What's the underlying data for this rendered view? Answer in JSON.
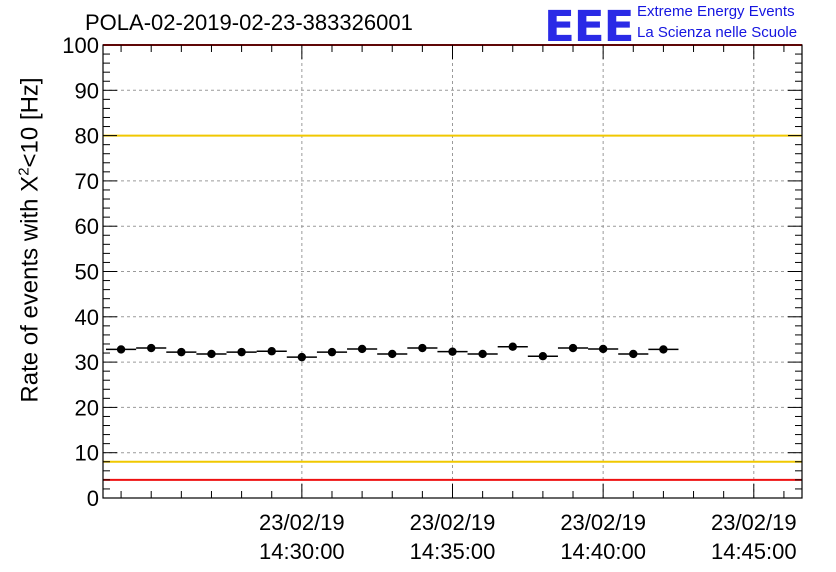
{
  "header": {
    "title": "POLA-02-2019-02-23-383326001"
  },
  "logo": {
    "mark": "EEE",
    "line1": "Extreme Energy Events",
    "line2": "La Scienza nelle Scuole",
    "color": "#1515e0"
  },
  "chart_data": {
    "type": "scatter",
    "title": "POLA-02-2019-02-23-383326001",
    "ylabel_main": "Rate of events with X",
    "ylabel_sup": "2",
    "ylabel_tail": "<10 [Hz]",
    "xlabel": "",
    "ylim": [
      0,
      100
    ],
    "yticks": [
      0,
      10,
      20,
      30,
      40,
      50,
      60,
      70,
      80,
      90,
      100
    ],
    "xlim_minutes": [
      23.4,
      46.6
    ],
    "xticks": [
      {
        "minute": 30,
        "date": "23/02/19",
        "time": "14:30:00"
      },
      {
        "minute": 35,
        "date": "23/02/19",
        "time": "14:35:00"
      },
      {
        "minute": 40,
        "date": "23/02/19",
        "time": "14:40:00"
      },
      {
        "minute": 45,
        "date": "23/02/19",
        "time": "14:45:00"
      }
    ],
    "grid": true,
    "bin_width_minutes": 1,
    "points": [
      {
        "minute": 24.0,
        "y": 32.8
      },
      {
        "minute": 25.0,
        "y": 33.1
      },
      {
        "minute": 26.0,
        "y": 32.2
      },
      {
        "minute": 27.0,
        "y": 31.8
      },
      {
        "minute": 28.0,
        "y": 32.2
      },
      {
        "minute": 29.0,
        "y": 32.4
      },
      {
        "minute": 30.0,
        "y": 31.1
      },
      {
        "minute": 31.0,
        "y": 32.2
      },
      {
        "minute": 32.0,
        "y": 32.9
      },
      {
        "minute": 33.0,
        "y": 31.8
      },
      {
        "minute": 34.0,
        "y": 33.1
      },
      {
        "minute": 35.0,
        "y": 32.3
      },
      {
        "minute": 36.0,
        "y": 31.8
      },
      {
        "minute": 37.0,
        "y": 33.4
      },
      {
        "minute": 38.0,
        "y": 31.3
      },
      {
        "minute": 39.0,
        "y": 33.1
      },
      {
        "minute": 40.0,
        "y": 32.9
      },
      {
        "minute": 41.0,
        "y": 31.8
      },
      {
        "minute": 42.0,
        "y": 32.8
      }
    ],
    "reference_lines": [
      {
        "y": 100,
        "color": "#ee1111"
      },
      {
        "y": 80,
        "color": "#f0c800"
      },
      {
        "y": 8,
        "color": "#f0c800"
      },
      {
        "y": 4,
        "color": "#ee1111"
      }
    ]
  }
}
